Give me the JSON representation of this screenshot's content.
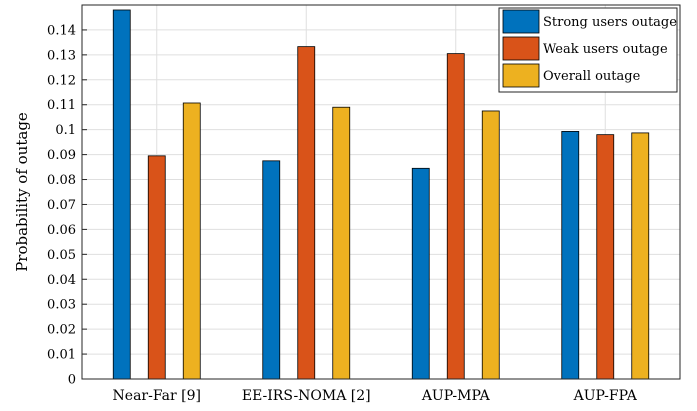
{
  "chart_data": {
    "type": "bar",
    "categories": [
      "Near-Far [9]",
      "EE-IRS-NOMA [2]",
      "AUP-MPA",
      "AUP-FPA"
    ],
    "series": [
      {
        "name": "Strong users outage",
        "color": "#0072BD",
        "values": [
          0.148,
          0.0875,
          0.0845,
          0.0993
        ]
      },
      {
        "name": "Weak users outage",
        "color": "#D95319",
        "values": [
          0.0895,
          0.1333,
          0.1305,
          0.098
        ]
      },
      {
        "name": "Overall outage",
        "color": "#EDB120",
        "values": [
          0.1107,
          0.109,
          0.1075,
          0.0987
        ]
      }
    ],
    "ylabel": "Probability of outage",
    "xlabel": "",
    "ylim": [
      0,
      0.15
    ],
    "yticks": [
      "0",
      "0.01",
      "0.02",
      "0.03",
      "0.04",
      "0.05",
      "0.06",
      "0.07",
      "0.08",
      "0.09",
      "0.1",
      "0.11",
      "0.12",
      "0.13",
      "0.14"
    ],
    "grid": true,
    "legend_position": "top-right"
  }
}
